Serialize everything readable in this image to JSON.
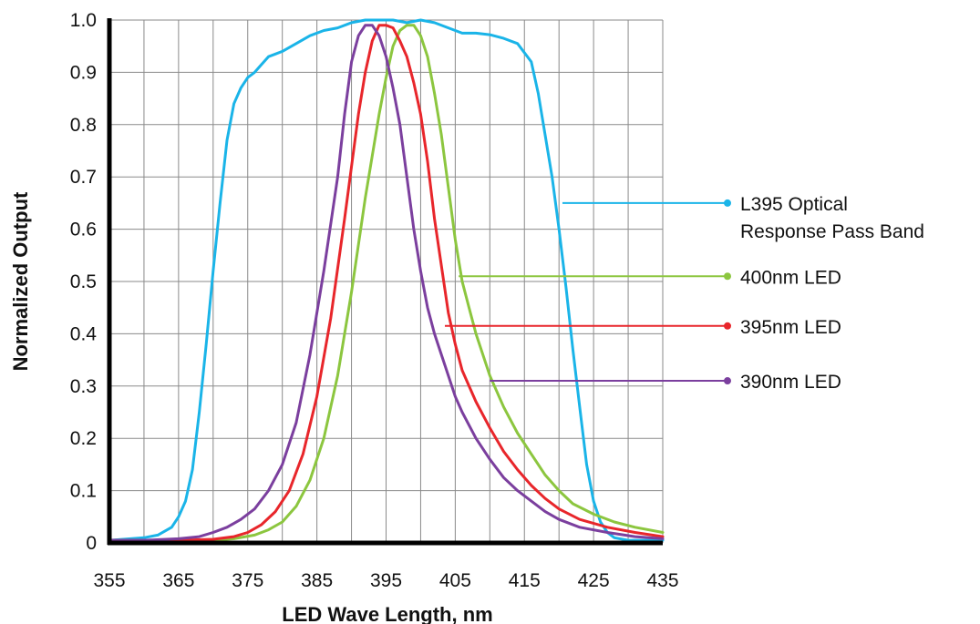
{
  "chart_data": {
    "type": "line",
    "xlabel": "LED Wave Length, nm",
    "ylabel": "Normalized Output",
    "xlim": [
      355,
      435
    ],
    "ylim": [
      0,
      1.0
    ],
    "x_ticks": [
      355,
      365,
      375,
      385,
      395,
      405,
      415,
      425,
      435
    ],
    "x_tick_labels": [
      "355",
      "365",
      "375",
      "385",
      "395",
      "405",
      "415",
      "425",
      "435"
    ],
    "y_ticks": [
      0,
      0.1,
      0.2,
      0.3,
      0.4,
      0.5,
      0.6,
      0.7,
      0.8,
      0.9,
      1.0
    ],
    "y_tick_labels": [
      "0",
      "0.1",
      "0.2",
      "0.3",
      "0.4",
      "0.5",
      "0.6",
      "0.7",
      "0.8",
      "0.9",
      "1.0"
    ],
    "x_minor_grid_step": 5,
    "grid": true,
    "legend_placement": "right, leader lines to curves",
    "series": [
      {
        "name": "L395 Optical Response Pass Band",
        "label_lines": [
          "L395 Optical",
          "Response Pass Band"
        ],
        "color": "#1ab4e8",
        "label_anchor": {
          "x": 420.5,
          "y": 0.65
        },
        "x": [
          355,
          360,
          362,
          364,
          365,
          366,
          367,
          368,
          369,
          370,
          371,
          372,
          373,
          374,
          375,
          376,
          377,
          378,
          379,
          380,
          382,
          384,
          386,
          388,
          390,
          392,
          394,
          396,
          398,
          400,
          402,
          404,
          406,
          408,
          410,
          412,
          414,
          416,
          417,
          418,
          419,
          420,
          421,
          422,
          423,
          424,
          425,
          426,
          427,
          428,
          430,
          435
        ],
        "values": [
          0.005,
          0.01,
          0.015,
          0.03,
          0.05,
          0.08,
          0.14,
          0.25,
          0.38,
          0.52,
          0.65,
          0.77,
          0.84,
          0.87,
          0.89,
          0.9,
          0.915,
          0.93,
          0.935,
          0.94,
          0.955,
          0.97,
          0.98,
          0.985,
          0.995,
          1.0,
          1.0,
          1.0,
          0.995,
          1.0,
          0.995,
          0.985,
          0.975,
          0.975,
          0.972,
          0.965,
          0.955,
          0.92,
          0.86,
          0.78,
          0.7,
          0.6,
          0.49,
          0.37,
          0.26,
          0.15,
          0.08,
          0.04,
          0.02,
          0.01,
          0.005,
          0.005
        ]
      },
      {
        "name": "400nm LED",
        "color": "#8cc63f",
        "label_anchor": {
          "x": 405.5,
          "y": 0.51
        },
        "x": [
          355,
          365,
          370,
          373,
          376,
          378,
          380,
          382,
          384,
          386,
          388,
          390,
          392,
          394,
          395,
          396,
          397,
          398,
          399,
          400,
          401,
          402,
          403,
          404,
          405,
          406,
          407,
          408,
          410,
          412,
          414,
          416,
          418,
          420,
          422,
          425,
          428,
          431,
          435
        ],
        "values": [
          0.005,
          0.005,
          0.005,
          0.008,
          0.015,
          0.025,
          0.04,
          0.07,
          0.12,
          0.2,
          0.32,
          0.48,
          0.66,
          0.82,
          0.89,
          0.95,
          0.98,
          0.99,
          0.99,
          0.97,
          0.93,
          0.86,
          0.78,
          0.68,
          0.58,
          0.5,
          0.45,
          0.4,
          0.32,
          0.26,
          0.21,
          0.17,
          0.13,
          0.1,
          0.075,
          0.055,
          0.04,
          0.03,
          0.02
        ]
      },
      {
        "name": "395nm LED",
        "color": "#e8262b",
        "label_anchor": {
          "x": 403.5,
          "y": 0.415
        },
        "x": [
          355,
          365,
          370,
          373,
          375,
          377,
          379,
          381,
          383,
          385,
          387,
          389,
          390,
          391,
          392,
          393,
          394,
          395,
          396,
          397,
          398,
          399,
          400,
          401,
          402,
          403,
          404,
          405,
          406,
          408,
          410,
          412,
          414,
          416,
          418,
          420,
          423,
          427,
          431,
          435
        ],
        "values": [
          0.005,
          0.005,
          0.007,
          0.012,
          0.02,
          0.035,
          0.06,
          0.1,
          0.17,
          0.28,
          0.43,
          0.62,
          0.72,
          0.82,
          0.9,
          0.96,
          0.99,
          0.99,
          0.985,
          0.96,
          0.93,
          0.88,
          0.82,
          0.73,
          0.62,
          0.53,
          0.44,
          0.38,
          0.33,
          0.27,
          0.22,
          0.175,
          0.14,
          0.11,
          0.085,
          0.065,
          0.045,
          0.03,
          0.02,
          0.012
        ]
      },
      {
        "name": "390nm LED",
        "color": "#7b3f9e",
        "label_anchor": {
          "x": 410,
          "y": 0.31
        },
        "x": [
          355,
          360,
          365,
          368,
          370,
          372,
          374,
          376,
          378,
          380,
          382,
          384,
          386,
          388,
          389,
          390,
          391,
          392,
          393,
          394,
          395,
          396,
          397,
          398,
          399,
          400,
          401,
          402,
          403,
          404,
          405,
          406,
          408,
          410,
          412,
          414,
          416,
          418,
          420,
          423,
          427,
          431,
          435
        ],
        "values": [
          0.005,
          0.005,
          0.008,
          0.012,
          0.02,
          0.03,
          0.045,
          0.065,
          0.1,
          0.15,
          0.23,
          0.36,
          0.52,
          0.7,
          0.82,
          0.92,
          0.97,
          0.99,
          0.99,
          0.97,
          0.93,
          0.87,
          0.8,
          0.7,
          0.6,
          0.52,
          0.45,
          0.4,
          0.36,
          0.32,
          0.28,
          0.25,
          0.2,
          0.16,
          0.125,
          0.1,
          0.08,
          0.06,
          0.045,
          0.03,
          0.02,
          0.012,
          0.008
        ]
      }
    ]
  }
}
